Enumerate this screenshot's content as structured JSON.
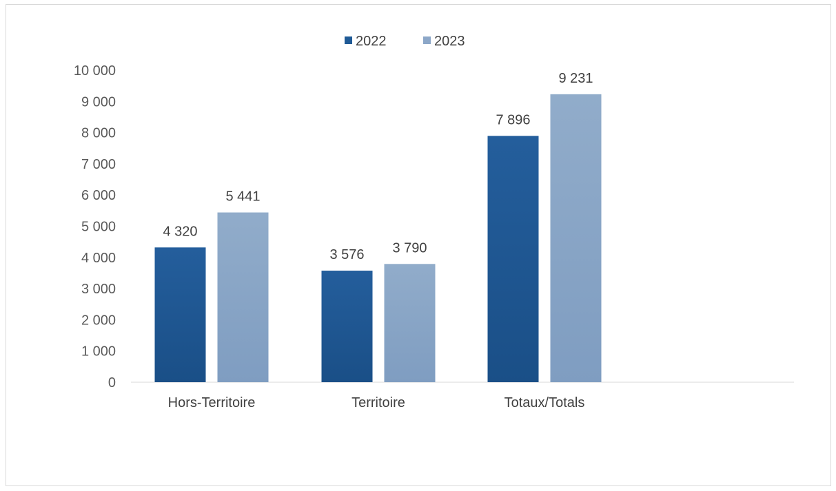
{
  "chart_data": {
    "type": "bar",
    "categories": [
      "Hors-Territoire",
      "Territoire",
      "Totaux/Totals"
    ],
    "series": [
      {
        "name": "2022",
        "values": [
          4320,
          3576,
          7896
        ],
        "labels": [
          "4 320",
          "3 576",
          "7 896"
        ],
        "color": "#1f5a96"
      },
      {
        "name": "2023",
        "values": [
          5441,
          3790,
          9231
        ],
        "labels": [
          "5 441",
          "3 790",
          "9 231"
        ],
        "color": "#8ca7c8"
      }
    ],
    "ylim": [
      0,
      10000
    ],
    "yticks": [
      0,
      1000,
      2000,
      3000,
      4000,
      5000,
      6000,
      7000,
      8000,
      9000,
      10000
    ],
    "ytick_labels": [
      "0",
      "1 000",
      "2 000",
      "3 000",
      "4 000",
      "5 000",
      "6 000",
      "7 000",
      "8 000",
      "9 000",
      "10 000"
    ],
    "legend_position": "top-center",
    "grid": false,
    "title": "",
    "xlabel": "",
    "ylabel": ""
  }
}
